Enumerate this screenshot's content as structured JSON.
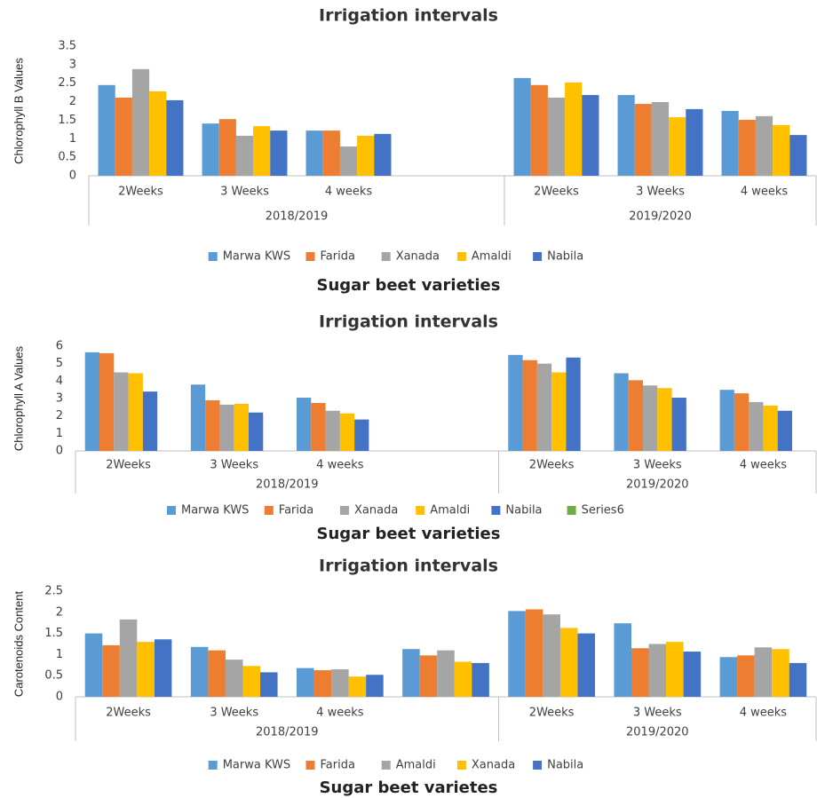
{
  "chart_data": [
    {
      "type": "bar",
      "title": "Irrigation intervals",
      "y_label": "Chlorophyll B Values",
      "x_label": "Sugar beet varieties",
      "groups": [
        {
          "name": "2018/2019",
          "categories": [
            "2Weeks",
            "3 Weeks",
            "4 weeks",
            null
          ]
        },
        {
          "name": "2019/2020",
          "categories": [
            "2Weeks",
            "3 Weeks",
            "4 weeks"
          ]
        }
      ],
      "series": [
        {
          "name": "Marwa KWS",
          "color": "#5b9bd5",
          "values": [
            2.45,
            1.41,
            1.22,
            null,
            2.64,
            2.18,
            1.75
          ]
        },
        {
          "name": "Farida",
          "color": "#ed7d31",
          "values": [
            2.11,
            1.53,
            1.22,
            null,
            2.45,
            1.94,
            1.51
          ]
        },
        {
          "name": "Xanada",
          "color": "#a5a5a5",
          "values": [
            2.88,
            1.08,
            0.79,
            null,
            2.11,
            1.99,
            1.61
          ]
        },
        {
          "name": "Amaldi",
          "color": "#ffc000",
          "values": [
            2.28,
            1.34,
            1.08,
            null,
            2.52,
            1.58,
            1.37
          ]
        },
        {
          "name": "Nabila",
          "color": "#4472c4",
          "values": [
            2.04,
            1.22,
            1.13,
            null,
            2.18,
            1.8,
            1.1
          ]
        }
      ],
      "ylim": [
        0,
        3.5
      ],
      "yticks": [
        0,
        0.5,
        1,
        1.5,
        2,
        2.5,
        3,
        3.5
      ],
      "grid": false,
      "legend": "bottom"
    },
    {
      "type": "bar",
      "title": "Irrigation intervals",
      "y_label": "Chlorophyll A Values",
      "x_label": "Sugar beet varieties",
      "groups": [
        {
          "name": "2018/2019",
          "categories": [
            "2Weeks",
            "3 Weeks",
            "4 weeks",
            null
          ]
        },
        {
          "name": "2019/2020",
          "categories": [
            "2Weeks",
            "3 Weeks",
            "4 weeks"
          ]
        }
      ],
      "series": [
        {
          "name": "Marwa KWS",
          "color": "#5b9bd5",
          "values": [
            5.65,
            3.8,
            3.05,
            null,
            5.5,
            4.45,
            3.5
          ]
        },
        {
          "name": "Farida",
          "color": "#ed7d31",
          "values": [
            5.6,
            2.9,
            2.75,
            null,
            5.2,
            4.05,
            3.3
          ]
        },
        {
          "name": "Xanada",
          "color": "#a5a5a5",
          "values": [
            4.5,
            2.65,
            2.3,
            null,
            5.0,
            3.75,
            2.8
          ]
        },
        {
          "name": "Amaldi",
          "color": "#ffc000",
          "values": [
            4.45,
            2.7,
            2.15,
            null,
            4.5,
            3.6,
            2.6
          ]
        },
        {
          "name": "Nabila",
          "color": "#4472c4",
          "values": [
            3.4,
            2.2,
            1.8,
            null,
            5.35,
            3.05,
            2.3
          ]
        },
        {
          "name": "Series6",
          "color": "#70ad47",
          "values": [
            null,
            null,
            null,
            null,
            null,
            null,
            null
          ]
        }
      ],
      "ylim": [
        0,
        6
      ],
      "yticks": [
        0,
        1,
        2,
        3,
        4,
        5,
        6
      ],
      "grid": false,
      "legend": "bottom"
    },
    {
      "type": "bar",
      "title": "Irrigation intervals",
      "y_label": "Carotenoids  Content",
      "x_label": "Sugar beet varietes",
      "groups": [
        {
          "name": "2018/2019",
          "categories": [
            "2Weeks",
            "3 Weeks",
            "4 weeks",
            null
          ]
        },
        {
          "name": "2019/2020",
          "categories": [
            "2Weeks",
            "3 Weeks",
            "4 weeks"
          ]
        }
      ],
      "series": [
        {
          "name": "Marwa KWS",
          "color": "#5b9bd5",
          "values": [
            1.5,
            1.18,
            0.68,
            1.13,
            2.03,
            1.74,
            0.94
          ]
        },
        {
          "name": "Farida",
          "color": "#ed7d31",
          "values": [
            1.22,
            1.1,
            0.63,
            0.98,
            2.07,
            1.15,
            0.98
          ]
        },
        {
          "name": "Amaldi",
          "color": "#a5a5a5",
          "values": [
            1.83,
            0.88,
            0.65,
            1.1,
            1.95,
            1.25,
            1.17
          ]
        },
        {
          "name": "Xanada",
          "color": "#ffc000",
          "values": [
            1.3,
            0.73,
            0.48,
            0.83,
            1.63,
            1.3,
            1.13
          ]
        },
        {
          "name": "Nabila",
          "color": "#4472c4",
          "values": [
            1.36,
            0.58,
            0.52,
            0.8,
            1.5,
            1.07,
            0.8
          ]
        }
      ],
      "ylim": [
        0,
        2.5
      ],
      "yticks": [
        0,
        0.5,
        1,
        1.5,
        2,
        2.5
      ],
      "grid": false,
      "legend": "bottom"
    }
  ]
}
